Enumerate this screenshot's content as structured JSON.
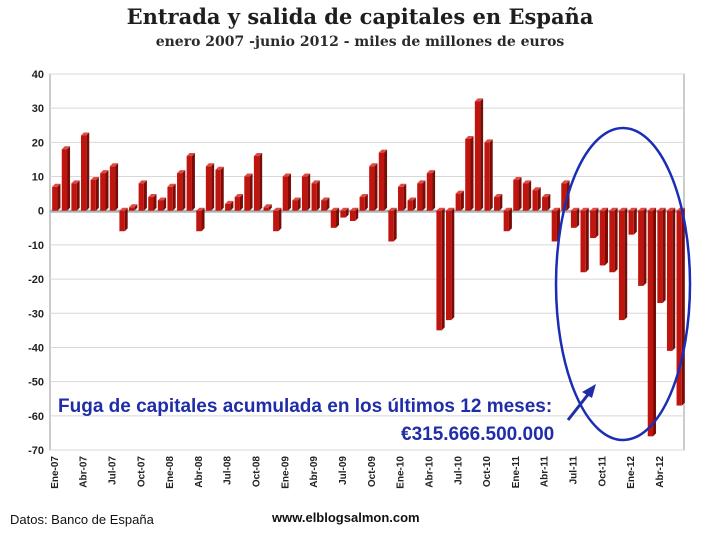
{
  "chart_data": {
    "type": "bar",
    "title": "Entrada y salida de capitales en España",
    "subtitle": "enero 2007 -junio 2012 - miles de millones de euros",
    "xlabel": "",
    "ylabel": "",
    "ylim": [
      -70,
      40
    ],
    "yticks": [
      40,
      30,
      20,
      10,
      0,
      -10,
      -20,
      -30,
      -40,
      -50,
      -60,
      -70
    ],
    "grid": true,
    "tick_labels": [
      "Ene-07",
      "Abr-07",
      "Jul-07",
      "Oct-07",
      "Ene-08",
      "Abr-08",
      "Jul-08",
      "Oct-08",
      "Ene-09",
      "Abr-09",
      "Jul-09",
      "Oct-09",
      "Ene-10",
      "Abr-10",
      "Jul-10",
      "Oct-10",
      "Ene-11",
      "Abr-11",
      "Jul-11",
      "Oct-11",
      "Ene-12",
      "Abr-12"
    ],
    "categories": [
      "Ene-07",
      "Feb-07",
      "Mar-07",
      "Abr-07",
      "May-07",
      "Jun-07",
      "Jul-07",
      "Ago-07",
      "Sep-07",
      "Oct-07",
      "Nov-07",
      "Dic-07",
      "Ene-08",
      "Feb-08",
      "Mar-08",
      "Abr-08",
      "May-08",
      "Jun-08",
      "Jul-08",
      "Ago-08",
      "Sep-08",
      "Oct-08",
      "Nov-08",
      "Dic-08",
      "Ene-09",
      "Feb-09",
      "Mar-09",
      "Abr-09",
      "May-09",
      "Jun-09",
      "Jul-09",
      "Ago-09",
      "Sep-09",
      "Oct-09",
      "Nov-09",
      "Dic-09",
      "Ene-10",
      "Feb-10",
      "Mar-10",
      "Abr-10",
      "May-10",
      "Jun-10",
      "Jul-10",
      "Ago-10",
      "Sep-10",
      "Oct-10",
      "Nov-10",
      "Dic-10",
      "Ene-11",
      "Feb-11",
      "Mar-11",
      "Abr-11",
      "May-11",
      "Jun-11",
      "Jul-11",
      "Ago-11",
      "Sep-11",
      "Oct-11",
      "Nov-11",
      "Dic-11",
      "Ene-12",
      "Feb-12",
      "Mar-12",
      "Abr-12",
      "May-12",
      "Jun-12"
    ],
    "values": [
      7,
      18,
      8,
      22,
      9,
      11,
      13,
      -6,
      1,
      8,
      4,
      3,
      7,
      11,
      16,
      -6,
      13,
      12,
      2,
      4,
      10,
      16,
      1,
      -6,
      10,
      3,
      10,
      8,
      3,
      -5,
      -2,
      -3,
      4,
      13,
      17,
      -9,
      7,
      3,
      8,
      11,
      -35,
      -32,
      5,
      21,
      32,
      20,
      4,
      -6,
      9,
      8,
      6,
      4,
      -9,
      8,
      -5,
      -18,
      -8,
      -16,
      -18,
      -32,
      -7,
      -22,
      -66,
      -27,
      -41,
      -57
    ],
    "bar_color": "#c0150f",
    "annotations": [
      "Fuga de capitales acumulada en los últimos 12 meses:",
      "€315.666.500.000"
    ],
    "annotation_color": "#1f2ea8",
    "highlight": "ellipse around Jul-11 to Jun-12",
    "highlight_color": "#1a2db5"
  },
  "footer": {
    "source": "Datos: Banco de España",
    "url": "www.elblogsalmon.com"
  }
}
